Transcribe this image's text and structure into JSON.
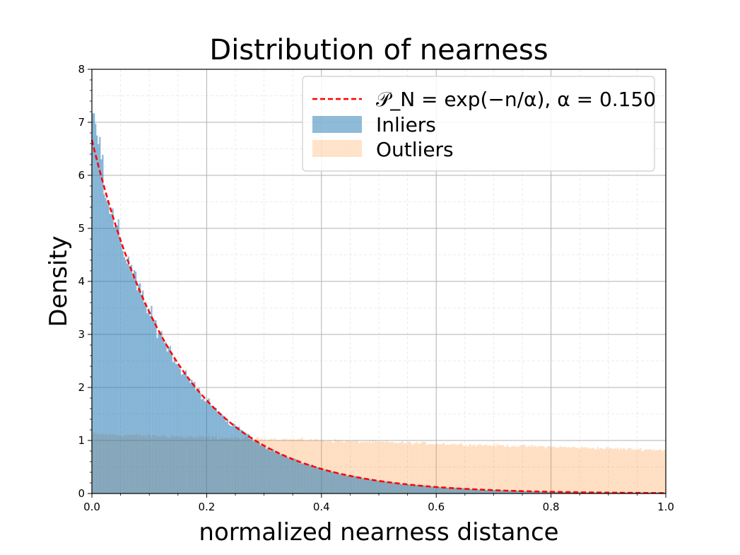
{
  "chart_data": {
    "type": "histogram",
    "title": "Distribution of nearness",
    "xlabel": "normalized nearness distance",
    "ylabel": "Density",
    "xlim": [
      0.0,
      1.0
    ],
    "ylim": [
      0,
      8
    ],
    "grid": true,
    "legend_position": "top-right",
    "x_ticks": [
      "0.0",
      "0.2",
      "0.4",
      "0.6",
      "0.8",
      "1.0"
    ],
    "y_ticks": [
      "0",
      "1",
      "2",
      "3",
      "4",
      "5",
      "6",
      "7",
      "8"
    ],
    "curve": {
      "name": "𝒫_N = exp(−n/α), α = 0.150",
      "function": "exp(-x/alpha)/alpha",
      "alpha": 0.15,
      "color": "#ff0000",
      "style": "dashed"
    },
    "series": [
      {
        "name": "Inliers",
        "color": "#1f77b4",
        "opacity": 0.5,
        "bin_width": 0.0025,
        "model": "exp(-x/alpha)/alpha with noise",
        "alpha": 0.15
      },
      {
        "name": "Outliers",
        "color": "#ff7f0e",
        "opacity": 0.22,
        "bin_width": 0.0025,
        "model": "linear decay with noise",
        "start_value": 1.12,
        "end_value": 0.82
      }
    ]
  }
}
